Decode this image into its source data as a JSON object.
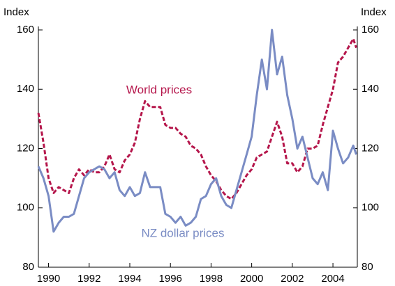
{
  "chart_data": {
    "type": "line",
    "ylabel": "Index",
    "y2label": "Index",
    "x": [
      1989.5,
      1989.75,
      1990,
      1990.25,
      1990.5,
      1990.75,
      1991,
      1991.25,
      1991.5,
      1991.75,
      1992,
      1992.25,
      1992.5,
      1992.75,
      1993,
      1993.25,
      1993.5,
      1993.75,
      1994,
      1994.25,
      1994.5,
      1994.75,
      1995,
      1995.25,
      1995.5,
      1995.75,
      1996,
      1996.25,
      1996.5,
      1996.75,
      1997,
      1997.25,
      1997.5,
      1997.75,
      1998,
      1998.25,
      1998.5,
      1998.75,
      1999,
      1999.25,
      1999.5,
      1999.75,
      2000,
      2000.25,
      2000.5,
      2000.75,
      2001,
      2001.25,
      2001.5,
      2001.75,
      2002,
      2002.25,
      2002.5,
      2002.75,
      2003,
      2003.25,
      2003.5,
      2003.75,
      2004,
      2004.25,
      2004.5,
      2004.75,
      2005,
      2005.15
    ],
    "series": [
      {
        "name": "World prices",
        "color": "#b5164b",
        "dash": true,
        "values": [
          132,
          122,
          110,
          105,
          107,
          106,
          105,
          110,
          113,
          111,
          113,
          112,
          112,
          114,
          118,
          113,
          112,
          116,
          118,
          122,
          130,
          136,
          134,
          134,
          134,
          128,
          127,
          127,
          125,
          124,
          121,
          120,
          118,
          114,
          111,
          109,
          106,
          104,
          103,
          105,
          108,
          111,
          113,
          117,
          118,
          119,
          124,
          129,
          124,
          115,
          115,
          112,
          114,
          120,
          120,
          121,
          128,
          134,
          140,
          149,
          151,
          154,
          157,
          154
        ]
      },
      {
        "name": "NZ dollar prices",
        "color": "#7a8cc4",
        "dash": false,
        "axis": "y2",
        "values": [
          114,
          110,
          104,
          92,
          95,
          97,
          97,
          98,
          104,
          110,
          112,
          113,
          114,
          113,
          110,
          112,
          106,
          104,
          107,
          104,
          105,
          112,
          107,
          107,
          107,
          98,
          97,
          95,
          97,
          94,
          95,
          97,
          103,
          104,
          108,
          110,
          104,
          101,
          100,
          106,
          112,
          118,
          124,
          138,
          150,
          140,
          160,
          145,
          151,
          138,
          130,
          120,
          124,
          117,
          110,
          108,
          112,
          106,
          126,
          120,
          115,
          117,
          121,
          118
        ]
      }
    ],
    "xlim": [
      1989.5,
      2005.2
    ],
    "xticks": [
      1990,
      1992,
      1994,
      1996,
      1998,
      2000,
      2002,
      2004
    ],
    "ylim": [
      80,
      160
    ],
    "yticks": [
      80,
      100,
      120,
      140,
      160
    ],
    "y2lim": [
      80,
      160
    ],
    "y2ticks": [
      80,
      100,
      120,
      140,
      160
    ],
    "grid": false
  }
}
